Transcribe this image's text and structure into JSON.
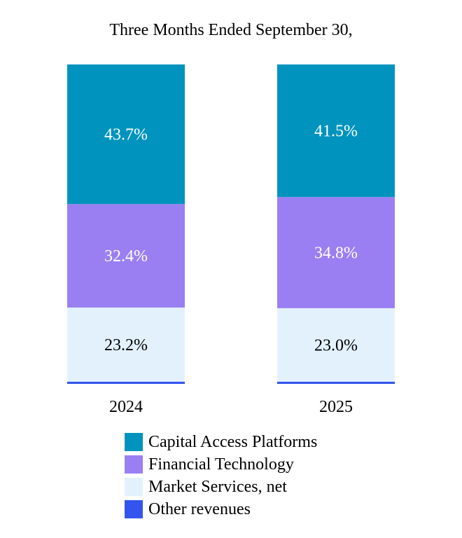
{
  "chart_data": {
    "type": "bar",
    "stacked": true,
    "title": "Three Months Ended September 30,",
    "categories": [
      "2024",
      "2025"
    ],
    "series": [
      {
        "name": "Other revenues",
        "color": "#3355ee",
        "values": [
          0.7,
          0.7
        ],
        "labels": [
          "",
          ""
        ],
        "label_color": "#000000"
      },
      {
        "name": "Market Services, net",
        "color": "#e3f1fd",
        "values": [
          23.2,
          23.0
        ],
        "labels": [
          "23.2%",
          "23.0%"
        ],
        "label_color": "#000000"
      },
      {
        "name": "Financial Technology",
        "color": "#9a7ff2",
        "values": [
          32.4,
          34.8
        ],
        "labels": [
          "32.4%",
          "34.8%"
        ],
        "label_color": "#ffffff"
      },
      {
        "name": "Capital Access Platforms",
        "color": "#0093bd",
        "values": [
          43.7,
          41.5
        ],
        "labels": [
          "43.7%",
          "41.5%"
        ],
        "label_color": "#ffffff"
      }
    ],
    "legend_order": [
      "Capital Access Platforms",
      "Financial Technology",
      "Market Services, net",
      "Other revenues"
    ],
    "ylim": [
      0,
      100
    ],
    "grid": false,
    "legend_position": "bottom"
  }
}
